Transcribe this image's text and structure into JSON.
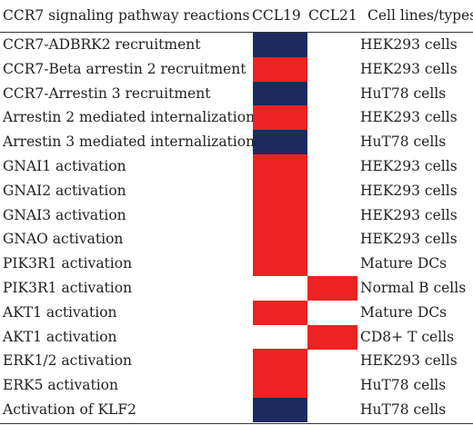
{
  "header": {
    "reaction": "CCR7 signaling pathway reactions",
    "ccl19": "CCL19",
    "ccl21": "CCL21",
    "cell_lines": "Cell lines/types"
  },
  "colors": {
    "red": "#ee2222",
    "blue": "#1c2a5e"
  },
  "rows": [
    {
      "reaction": "CCR7-ADBRK2 recruitment",
      "cell_line": "HEK293 cells",
      "ccl19": "blue",
      "ccl21": "none"
    },
    {
      "reaction": "CCR7-Beta arrestin 2 recruitment",
      "cell_line": "HEK293 cells",
      "ccl19": "red",
      "ccl21": "none"
    },
    {
      "reaction": "CCR7-Arrestin 3 recruitment",
      "cell_line": "HuT78 cells",
      "ccl19": "blue",
      "ccl21": "none"
    },
    {
      "reaction": "Arrestin 2 mediated internalization",
      "cell_line": "HEK293 cells",
      "ccl19": "red",
      "ccl21": "none"
    },
    {
      "reaction": "Arrestin 3 mediated internalization",
      "cell_line": "HuT78 cells",
      "ccl19": "blue",
      "ccl21": "none"
    },
    {
      "reaction": "GNAI1 activation",
      "cell_line": "HEK293 cells",
      "ccl19": "red",
      "ccl21": "none"
    },
    {
      "reaction": "GNAI2 activation",
      "cell_line": "HEK293 cells",
      "ccl19": "red",
      "ccl21": "none"
    },
    {
      "reaction": "GNAI3 activation",
      "cell_line": "HEK293 cells",
      "ccl19": "red",
      "ccl21": "none"
    },
    {
      "reaction": "GNAO activation",
      "cell_line": "HEK293 cells",
      "ccl19": "red",
      "ccl21": "none"
    },
    {
      "reaction": "PIK3R1 activation",
      "cell_line": "Mature DCs",
      "ccl19": "red",
      "ccl21": "none"
    },
    {
      "reaction": "PIK3R1 activation",
      "cell_line": "Normal B cells",
      "ccl19": "none",
      "ccl21": "red"
    },
    {
      "reaction": "AKT1 activation",
      "cell_line": "Mature DCs",
      "ccl19": "red",
      "ccl21": "none"
    },
    {
      "reaction": "AKT1 activation",
      "cell_line": "CD8+ T cells",
      "ccl19": "none",
      "ccl21": "red"
    },
    {
      "reaction": "ERK1/2 activation",
      "cell_line": "HEK293 cells",
      "ccl19": "red",
      "ccl21": "none"
    },
    {
      "reaction": "ERK5 activation",
      "cell_line": "HuT78 cells",
      "ccl19": "red",
      "ccl21": "none"
    },
    {
      "reaction": "Activation of KLF2",
      "cell_line": "HuT78 cells",
      "ccl19": "blue",
      "ccl21": "none"
    }
  ]
}
